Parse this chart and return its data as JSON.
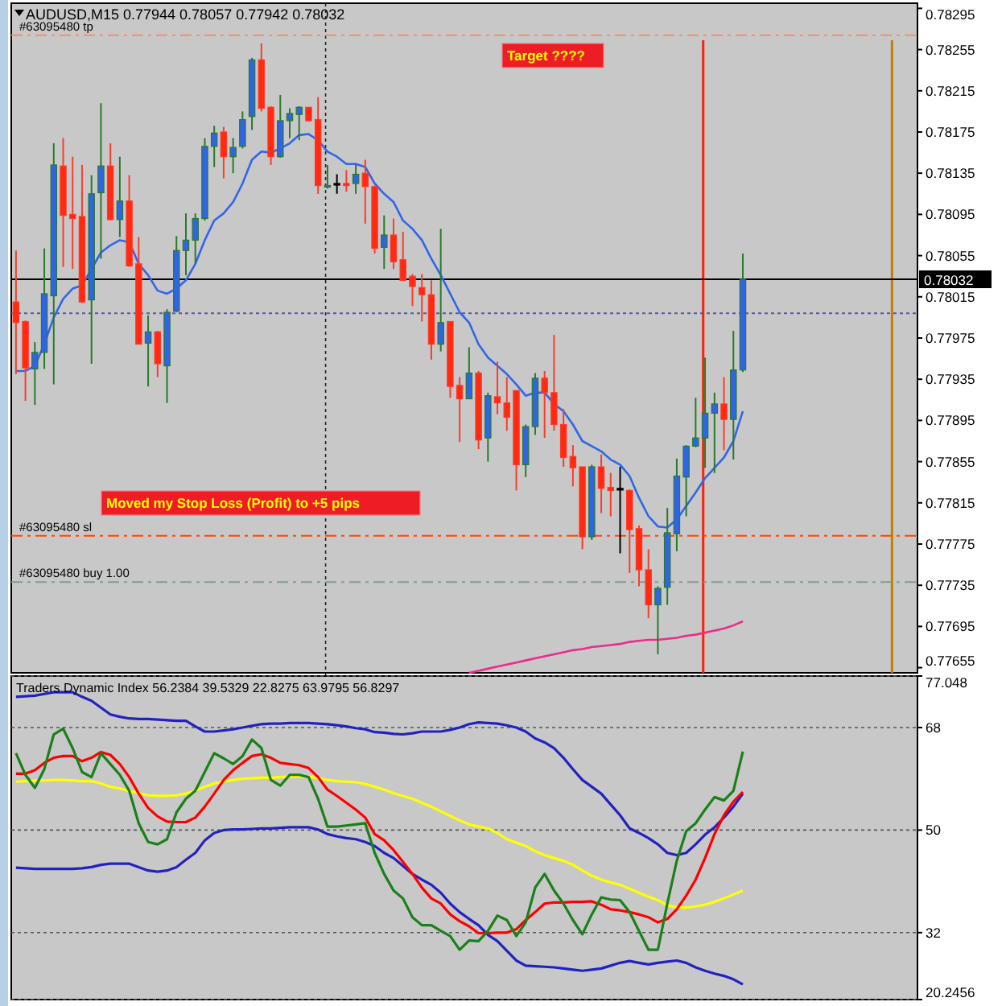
{
  "chart_data": [
    {
      "type": "candlestick",
      "title": "AUDUSD,M15 0.77944 0.78057 0.77942 0.78032",
      "categories": [
        null,
        null,
        null,
        null,
        null,
        null,
        null,
        null,
        null,
        null,
        null,
        null,
        null,
        null,
        null,
        null,
        null,
        null,
        null,
        null,
        null,
        null,
        null,
        null,
        null,
        null,
        null,
        null,
        null,
        null,
        null,
        null,
        null,
        null,
        null,
        null,
        null,
        null,
        null,
        null,
        null,
        null,
        null,
        null,
        null,
        null,
        null,
        null,
        null,
        null,
        null,
        null,
        null,
        null,
        null,
        null,
        null,
        null,
        null,
        null,
        null,
        null,
        null,
        null,
        null,
        null,
        null,
        null,
        null,
        null,
        null,
        null,
        null,
        null,
        null,
        null,
        null,
        null,
        null,
        null,
        null,
        null,
        null,
        null,
        null,
        null,
        null,
        null,
        null,
        null,
        null,
        null,
        null,
        null,
        null,
        null
      ],
      "ohlc": [
        [
          0.7801,
          0.7806,
          0.7794,
          0.7799
        ],
        [
          0.77991,
          0.77992,
          0.77914,
          0.77946
        ],
        [
          0.77945,
          0.77971,
          0.7791,
          0.77961
        ],
        [
          0.77961,
          0.78062,
          0.77945,
          0.78018
        ],
        [
          0.78016,
          0.78164,
          0.7793,
          0.78143
        ],
        [
          0.78142,
          0.78169,
          0.78044,
          0.78094
        ],
        [
          0.78095,
          0.78151,
          0.78042,
          0.78091
        ],
        [
          0.78093,
          0.78143,
          0.78009,
          0.7801
        ],
        [
          0.78012,
          0.78133,
          0.7795,
          0.78115
        ],
        [
          0.78116,
          0.78203,
          0.78052,
          0.78142
        ],
        [
          0.78142,
          0.78164,
          0.78089,
          0.7809
        ],
        [
          0.7809,
          0.78151,
          0.78073,
          0.78108
        ],
        [
          0.78108,
          0.78133,
          0.78044,
          0.78045
        ],
        [
          0.78047,
          0.78073,
          0.77969,
          0.77969
        ],
        [
          0.7797,
          0.77997,
          0.77928,
          0.77981
        ],
        [
          0.77981,
          0.77982,
          0.77937,
          0.7795
        ],
        [
          0.77948,
          0.78003,
          0.77912,
          0.78
        ],
        [
          0.78001,
          0.78074,
          0.78,
          0.7806
        ],
        [
          0.7806,
          0.78096,
          0.78036,
          0.7807
        ],
        [
          0.7807,
          0.78096,
          0.78047,
          0.78091
        ],
        [
          0.78091,
          0.78169,
          0.78089,
          0.78161
        ],
        [
          0.78161,
          0.78181,
          0.78141,
          0.78174
        ],
        [
          0.78175,
          0.7818,
          0.7813,
          0.78151
        ],
        [
          0.78151,
          0.78169,
          0.78135,
          0.7816
        ],
        [
          0.78161,
          0.78195,
          0.78159,
          0.78187
        ],
        [
          0.7819,
          0.78247,
          0.78177,
          0.78245
        ],
        [
          0.78245,
          0.78261,
          0.78195,
          0.78198
        ],
        [
          0.78199,
          0.782,
          0.78143,
          0.78151
        ],
        [
          0.78151,
          0.78211,
          0.7815,
          0.78186
        ],
        [
          0.78186,
          0.78198,
          0.78169,
          0.78193
        ],
        [
          0.78192,
          0.782,
          0.78167,
          0.78199
        ],
        [
          0.78199,
          0.78199,
          0.78185,
          0.78186
        ],
        [
          0.78187,
          0.78209,
          0.78115,
          0.78123
        ],
        [
          0.78122,
          0.78143,
          0.7812,
          0.78123
        ],
        [
          0.78125,
          0.78134,
          0.78115,
          0.78125
        ],
        [
          0.78125,
          0.78138,
          0.78117,
          0.78123
        ],
        [
          0.78125,
          0.78143,
          0.78115,
          0.78134
        ],
        [
          0.78135,
          0.78148,
          0.78086,
          0.78122
        ],
        [
          0.78122,
          0.78123,
          0.78057,
          0.78062
        ],
        [
          0.78063,
          0.78094,
          0.78042,
          0.78075
        ],
        [
          0.78075,
          0.78091,
          0.78042,
          0.78049
        ],
        [
          0.78051,
          0.78078,
          0.78031,
          0.78031
        ],
        [
          0.78035,
          0.78037,
          0.78006,
          0.78025
        ],
        [
          0.78024,
          0.78037,
          0.77991,
          0.78017
        ],
        [
          0.78017,
          0.78031,
          0.77954,
          0.77969
        ],
        [
          0.77969,
          0.78081,
          0.77962,
          0.7799
        ],
        [
          0.77991,
          0.77991,
          0.77917,
          0.77928
        ],
        [
          0.77929,
          0.77937,
          0.77874,
          0.77916
        ],
        [
          0.77916,
          0.77966,
          0.77916,
          0.77941
        ],
        [
          0.77941,
          0.77943,
          0.77867,
          0.77876
        ],
        [
          0.77878,
          0.77922,
          0.77855,
          0.77919
        ],
        [
          0.77918,
          0.77952,
          0.77901,
          0.77912
        ],
        [
          0.77912,
          0.77937,
          0.77885,
          0.77898
        ],
        [
          0.77924,
          0.77924,
          0.77827,
          0.77852
        ],
        [
          0.77852,
          0.77891,
          0.7784,
          0.77889
        ],
        [
          0.77889,
          0.77941,
          0.77881,
          0.77936
        ],
        [
          0.77936,
          0.77943,
          0.77878,
          0.77922
        ],
        [
          0.77922,
          0.77978,
          0.77885,
          0.77891
        ],
        [
          0.77891,
          0.77906,
          0.7785,
          0.77859
        ],
        [
          0.7786,
          0.77871,
          0.77831,
          0.77849
        ],
        [
          0.7785,
          0.7785,
          0.7777,
          0.77782
        ],
        [
          0.77782,
          0.77852,
          0.77779,
          0.7785
        ],
        [
          0.7785,
          0.77862,
          0.77805,
          0.77829
        ],
        [
          0.7783,
          0.77844,
          0.77802,
          0.77827
        ],
        [
          0.77829,
          0.7785,
          0.77766,
          0.77829
        ],
        [
          0.77827,
          0.77828,
          0.77747,
          0.77789
        ],
        [
          0.7779,
          0.77793,
          0.77734,
          0.7775
        ],
        [
          0.7775,
          0.7777,
          0.77703,
          0.77716
        ],
        [
          0.77716,
          0.77734,
          0.77668,
          0.77732
        ],
        [
          0.77733,
          0.7781,
          0.77716,
          0.77786
        ],
        [
          0.77785,
          0.77858,
          0.77768,
          0.77841
        ],
        [
          0.7784,
          0.77871,
          0.77802,
          0.7787
        ],
        [
          0.7787,
          0.77917,
          0.77869,
          0.77878
        ],
        [
          0.77878,
          0.77956,
          0.77849,
          0.77902
        ],
        [
          0.77902,
          0.77922,
          0.77844,
          0.77911
        ],
        [
          0.77911,
          0.77937,
          0.77866,
          0.77896
        ],
        [
          0.77896,
          0.77982,
          0.77857,
          0.77944
        ],
        [
          0.77944,
          0.78057,
          0.77942,
          0.78032
        ],
        null,
        null,
        null,
        null,
        null,
        null,
        null,
        null,
        null,
        null,
        null,
        null,
        null,
        null,
        null,
        null,
        null,
        null
      ],
      "series": [
        {
          "type": "line",
          "color": "#3366e6",
          "values": [
            0.77943,
            0.77943,
            0.77948,
            0.77969,
            0.77995,
            0.78013,
            0.78023,
            0.78026,
            0.78042,
            0.78058,
            0.78065,
            0.7807,
            0.78068,
            0.78047,
            0.78036,
            0.78021,
            0.78018,
            0.78023,
            0.78031,
            0.78047,
            0.7807,
            0.78089,
            0.78096,
            0.78107,
            0.78125,
            0.78148,
            0.78156,
            0.78155,
            0.78159,
            0.78164,
            0.78172,
            0.78173,
            0.78167,
            0.78156,
            0.78151,
            0.78144,
            0.78144,
            0.78141,
            0.78125,
            0.78115,
            0.78107,
            0.78089,
            0.78081,
            0.7807,
            0.78052,
            0.78036,
            0.78018,
            0.78,
            0.7799,
            0.77969,
            0.77956,
            0.77948,
            0.7794,
            0.7793,
            0.77919,
            0.77922,
            0.77922,
            0.77911,
            0.77904,
            0.77891,
            0.77875,
            0.7787,
            0.77865,
            0.77857,
            0.77852,
            0.77841,
            0.7782,
            0.77802,
            0.77792,
            0.77791,
            0.77799,
            0.77812,
            0.77825,
            0.77839,
            0.77849,
            0.77859,
            0.77875,
            0.77904,
            null,
            null,
            null,
            null,
            null,
            null,
            null,
            null,
            null,
            null,
            null,
            null,
            null,
            null,
            null,
            null,
            null,
            null
          ]
        },
        {
          "type": "line",
          "color": "#ee2a8a",
          "values": [
            null,
            null,
            null,
            null,
            null,
            null,
            null,
            null,
            null,
            null,
            null,
            null,
            null,
            null,
            null,
            null,
            null,
            null,
            null,
            null,
            null,
            null,
            null,
            null,
            null,
            null,
            null,
            null,
            null,
            null,
            null,
            null,
            null,
            null,
            null,
            null,
            null,
            null,
            null,
            null,
            null,
            null,
            null,
            null,
            null,
            null,
            null,
            null,
            0.7765,
            0.77652,
            0.77654,
            0.77656,
            0.77658,
            0.7766,
            0.77662,
            0.77664,
            0.77666,
            0.77668,
            0.7767,
            0.77672,
            0.77673,
            0.77675,
            0.77676,
            0.77677,
            0.77678,
            0.7768,
            0.77681,
            0.77682,
            0.77682,
            0.77683,
            0.77684,
            0.77686,
            0.77687,
            0.77689,
            0.77691,
            0.77693,
            0.77696,
            0.777,
            null,
            null,
            null,
            null,
            null,
            null,
            null,
            null,
            null,
            null,
            null,
            null,
            null,
            null,
            null,
            null,
            null,
            null
          ]
        }
      ],
      "ylim": [
        0.7765,
        0.783
      ],
      "yticks": [
        0.77655,
        0.77695,
        0.77735,
        0.77775,
        0.77815,
        0.77855,
        0.77895,
        0.77935,
        0.77975,
        0.78015,
        0.78055,
        0.78095,
        0.78135,
        0.78175,
        0.78215,
        0.78255,
        0.78295
      ],
      "ref_lines": [
        {
          "axis": "y",
          "value": 0.78269,
          "label": "#63095480 tp",
          "color": "#f0906a",
          "line_style": "dashed"
        },
        {
          "axis": "y",
          "value": 0.77783,
          "label": "#63095480 sl",
          "color": "#ff4500",
          "line_style": "dashed"
        },
        {
          "axis": "y",
          "value": 0.77738,
          "label": "#63095480 buy 1.00",
          "color": "#7fa08a",
          "line_style": "dashed"
        },
        {
          "axis": "y",
          "value": 0.77999,
          "color": "#5555a8",
          "line_style": "dotted"
        },
        {
          "axis": "y",
          "value": 0.78032,
          "label": "0.78032",
          "color": "#000000"
        }
      ],
      "annotations": [
        "Target ????",
        "Moved my Stop Loss (Profit) to +5 pips"
      ]
    },
    {
      "type": "line",
      "title": "Traders Dynamic Index 56.2384 39.5329 22.8275 63.9795 56.8297",
      "categories": [
        null,
        null,
        null,
        null,
        null,
        null,
        null,
        null,
        null,
        null,
        null,
        null,
        null,
        null,
        null,
        null,
        null,
        null,
        null,
        null,
        null,
        null,
        null,
        null,
        null,
        null,
        null,
        null,
        null,
        null,
        null,
        null,
        null,
        null,
        null,
        null,
        null,
        null,
        null,
        null,
        null,
        null,
        null,
        null,
        null,
        null,
        null,
        null,
        null,
        null,
        null,
        null,
        null,
        null,
        null,
        null,
        null,
        null,
        null,
        null,
        null,
        null,
        null,
        null,
        null,
        null,
        null,
        null,
        null,
        null,
        null,
        null,
        null,
        null,
        null,
        null,
        null,
        null,
        null,
        null,
        null,
        null,
        null,
        null,
        null,
        null,
        null,
        null,
        null,
        null,
        null,
        null,
        null,
        null,
        null,
        null
      ],
      "series": [
        {
          "color": "#2222c0",
          "values": [
            73.4,
            73.5,
            73.6,
            73.9,
            74.2,
            74.2,
            74.2,
            73.4,
            72.7,
            71.5,
            70.3,
            69.9,
            69.6,
            69.5,
            69.5,
            69.4,
            69.3,
            69.2,
            69.2,
            68.2,
            67.3,
            67.3,
            67.5,
            67.7,
            68.0,
            68.3,
            68.6,
            68.7,
            68.7,
            68.8,
            68.8,
            68.8,
            68.7,
            68.6,
            68.4,
            68.2,
            67.9,
            67.7,
            67.2,
            67.1,
            66.9,
            66.8,
            67.0,
            67.3,
            67.3,
            67.3,
            67.6,
            68.0,
            68.6,
            68.9,
            68.8,
            68.7,
            68.4,
            68.0,
            67.3,
            66.1,
            65.4,
            64.4,
            62.7,
            60.7,
            58.8,
            57.6,
            56.4,
            54.5,
            52.6,
            50.3,
            49.5,
            48.6,
            47.5,
            46.0,
            45.6,
            46.0,
            47.5,
            49.2,
            50.5,
            52.2,
            54.1,
            56.4,
            null,
            null,
            null,
            null,
            null,
            null,
            null,
            null,
            null,
            null,
            null,
            null,
            null,
            null,
            null,
            null,
            null,
            null
          ]
        },
        {
          "color": "#2222c0",
          "values": [
            43.4,
            43.3,
            43.2,
            43.2,
            43.2,
            43.2,
            43.2,
            43.3,
            43.5,
            43.9,
            44.1,
            44.1,
            44.1,
            43.5,
            42.9,
            42.7,
            42.9,
            43.5,
            44.8,
            46.0,
            48.2,
            49.5,
            50.0,
            50.1,
            50.1,
            50.2,
            50.3,
            50.3,
            50.4,
            50.5,
            50.5,
            50.5,
            50.1,
            49.3,
            48.9,
            48.6,
            48.4,
            47.9,
            47.2,
            46.0,
            45.1,
            43.7,
            42.3,
            41.3,
            40.4,
            39.0,
            37.1,
            35.6,
            34.4,
            33.3,
            31.6,
            30.5,
            28.8,
            27.1,
            26.2,
            26.1,
            26.0,
            25.9,
            25.7,
            25.5,
            25.3,
            25.5,
            25.7,
            26.2,
            26.7,
            27.0,
            26.7,
            26.4,
            26.7,
            26.9,
            27.1,
            26.7,
            25.9,
            25.3,
            24.8,
            24.4,
            23.8,
            22.9,
            null,
            null,
            null,
            null,
            null,
            null,
            null,
            null,
            null,
            null,
            null,
            null,
            null,
            null,
            null,
            null,
            null,
            null
          ]
        },
        {
          "color": "#ffff00",
          "values": [
            58.5,
            58.6,
            58.7,
            58.7,
            58.8,
            58.8,
            58.7,
            58.6,
            58.6,
            58.2,
            57.6,
            57.3,
            56.9,
            56.5,
            56.1,
            56.0,
            56.0,
            56.1,
            56.4,
            56.9,
            57.6,
            58.2,
            58.5,
            58.8,
            59.0,
            59.1,
            59.2,
            59.2,
            59.3,
            59.4,
            59.4,
            59.4,
            59.1,
            58.8,
            58.6,
            58.5,
            58.4,
            58.1,
            57.6,
            57.1,
            56.5,
            56.0,
            55.5,
            54.8,
            54.1,
            53.3,
            52.5,
            51.7,
            51.0,
            50.6,
            50.3,
            49.5,
            48.4,
            47.8,
            47.2,
            46.3,
            45.6,
            45.1,
            44.6,
            43.9,
            42.9,
            42.0,
            41.3,
            40.8,
            40.4,
            39.7,
            39.0,
            38.3,
            37.7,
            36.8,
            36.4,
            36.4,
            36.6,
            36.9,
            37.4,
            38.0,
            38.7,
            39.4,
            null,
            null,
            null,
            null,
            null,
            null,
            null,
            null,
            null,
            null,
            null,
            null,
            null,
            null,
            null,
            null,
            null,
            null
          ]
        },
        {
          "color": "#ff0000",
          "values": [
            59.9,
            59.9,
            60.5,
            61.8,
            62.7,
            63.0,
            63.0,
            62.1,
            62.7,
            63.7,
            63.2,
            61.6,
            59.3,
            56.4,
            53.9,
            52.4,
            51.5,
            51.4,
            51.4,
            52.2,
            54.1,
            56.4,
            58.8,
            60.5,
            61.8,
            63.0,
            63.3,
            62.7,
            61.8,
            61.6,
            61.4,
            60.9,
            59.3,
            57.1,
            56.0,
            54.8,
            53.6,
            52.2,
            49.3,
            48.2,
            46.5,
            44.4,
            42.3,
            39.9,
            38.0,
            37.1,
            35.2,
            34.0,
            33.1,
            31.9,
            31.9,
            32.0,
            32.0,
            32.6,
            34.2,
            35.6,
            37.1,
            37.3,
            37.3,
            37.4,
            37.4,
            37.5,
            36.9,
            36.1,
            35.9,
            35.6,
            35.2,
            34.7,
            33.8,
            34.4,
            36.1,
            38.5,
            41.3,
            45.1,
            49.3,
            52.6,
            55.0,
            56.7,
            null,
            null,
            null,
            null,
            null,
            null,
            null,
            null,
            null,
            null,
            null,
            null,
            null,
            null,
            null,
            null,
            null,
            null
          ]
        },
        {
          "color": "#1a801a",
          "values": [
            63.5,
            59.7,
            57.4,
            60.7,
            66.8,
            67.8,
            64.4,
            60.2,
            59.3,
            63.5,
            61.6,
            59.7,
            56.9,
            51.2,
            47.9,
            47.5,
            48.4,
            53.1,
            55.5,
            56.9,
            60.2,
            63.5,
            62.6,
            61.6,
            63.0,
            65.9,
            64.4,
            58.8,
            57.8,
            59.7,
            59.7,
            59.3,
            55.5,
            50.6,
            50.6,
            50.8,
            51.0,
            51.2,
            46.0,
            42.3,
            39.4,
            38.0,
            34.7,
            33.3,
            33.3,
            32.3,
            31.4,
            29.0,
            30.6,
            30.5,
            32.3,
            35.0,
            34.2,
            31.4,
            33.8,
            39.9,
            42.3,
            39.4,
            37.1,
            34.2,
            31.7,
            35.2,
            38.2,
            37.8,
            37.7,
            35.6,
            32.3,
            29.0,
            29.0,
            37.1,
            44.6,
            49.8,
            51.2,
            53.6,
            55.8,
            55.2,
            56.9,
            63.8,
            null,
            null,
            null,
            null,
            null,
            null,
            null,
            null,
            null,
            null,
            null,
            null,
            null,
            null,
            null,
            null,
            null,
            null
          ]
        }
      ],
      "ylim": [
        20.2456,
        77.048
      ],
      "yticks": [
        20.2456,
        32,
        50,
        68,
        77.048
      ],
      "grid": "y"
    }
  ]
}
